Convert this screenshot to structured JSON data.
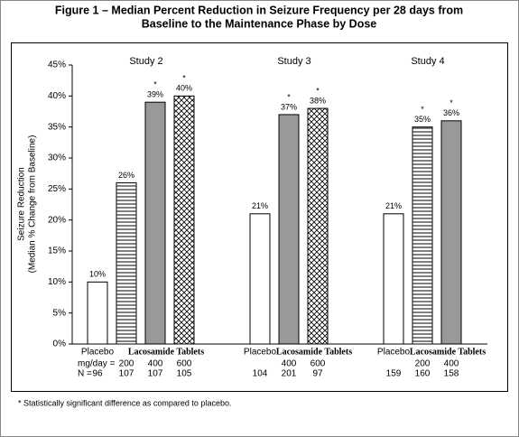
{
  "chart_data": {
    "type": "bar",
    "title": [
      "Figure 1 – Median Percent Reduction in Seizure Frequency per 28 days from",
      "Baseline to the Maintenance Phase by Dose"
    ],
    "ylabel": [
      "Seizure Reduction",
      "(Median % Change from Baseline)"
    ],
    "ylim": [
      0,
      45
    ],
    "yticks": [
      {
        "value": 0,
        "label": "0%"
      },
      {
        "value": 5,
        "label": "5%"
      },
      {
        "value": 10,
        "label": "10%"
      },
      {
        "value": 15,
        "label": "15%"
      },
      {
        "value": 20,
        "label": "20%"
      },
      {
        "value": 25,
        "label": "25%"
      },
      {
        "value": 30,
        "label": "30%"
      },
      {
        "value": 35,
        "label": "35%"
      },
      {
        "value": 40,
        "label": "40%"
      },
      {
        "value": 45,
        "label": "45%"
      }
    ],
    "dose_row_label": "mg/day =",
    "n_row_label": "N =",
    "significance_marker": "*",
    "studies": [
      {
        "name": "Study 2",
        "placebo_label": "Placebo",
        "drug_label": "Lacosamide Tablets",
        "values": [
          10,
          26,
          39,
          40
        ],
        "value_labels": [
          "10%",
          "26%",
          "39%",
          "40%"
        ],
        "doses": [
          null,
          "200",
          "400",
          "600"
        ],
        "n": [
          "96",
          "107",
          "107",
          "105"
        ],
        "significant": [
          false,
          false,
          true,
          true
        ],
        "patterns": [
          "open",
          "stripes",
          "solid",
          "crosshatch"
        ]
      },
      {
        "name": "Study 3",
        "placebo_label": "Placebo",
        "drug_label": "Lacosamide Tablets",
        "values": [
          21,
          37,
          38
        ],
        "value_labels": [
          "21%",
          "37%",
          "38%"
        ],
        "doses": [
          null,
          "400",
          "600"
        ],
        "n": [
          "104",
          "201",
          "97"
        ],
        "significant": [
          false,
          true,
          true
        ],
        "patterns": [
          "open",
          "solid",
          "crosshatch"
        ]
      },
      {
        "name": "Study 4",
        "placebo_label": "Placebo",
        "drug_label": "Lacosamide Tablets",
        "values": [
          21,
          35,
          36
        ],
        "value_labels": [
          "21%",
          "35%",
          "36%"
        ],
        "doses": [
          null,
          "200",
          "400"
        ],
        "n": [
          "159",
          "160",
          "158"
        ],
        "significant": [
          false,
          true,
          true
        ],
        "patterns": [
          "open",
          "stripes",
          "solid"
        ]
      }
    ],
    "footnote": "* Statistically significant difference as compared to placebo."
  }
}
